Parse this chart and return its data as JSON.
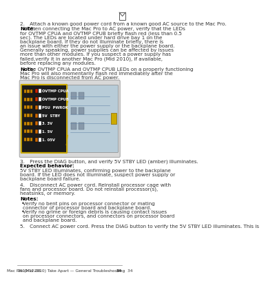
{
  "bg_color": "#f0eeeb",
  "page_bg": "#ffffff",
  "title_footer_left": "2010-12-06",
  "title_footer_right": "Mac Pro (Mid 2010) Take Apart — General Troubleshooting",
  "page_number": "34",
  "header_icon_visible": true,
  "step2_text": "2. Attach a known good power cord from a known good AC source to the Mac Pro.",
  "note1_label": "Note:",
  "note1_text": "When connecting the Mac Pro to AC power, verify that the LEDs for OVTMP CPUA and OVTMP CPUB briefly flash red (less than 0.5 sec). The LEDs are located under hard drive bay 1 on the backplane board. If they do not illuminate briefly, there is an issue with either the power supply or the backplane board. Generally speaking, power supplies can be affected by issues more than other modules. If you suspect a power supply has failed,verify it in another Mac Pro (Mid 2010), if available, before replacing any modules.",
  "note2_label": "Note:",
  "note2_text": "The OVTMP CPUA and OVTMP CPUB LEDs on a properly functioning Mac Pro will also momentarily flash red immediately after the Mac Pro is disconnected from AC power.",
  "led_labels": [
    "OVTMP CPUA",
    "OVTMP CPUB",
    "PSU  PWROK",
    "5V  STBY",
    "3. 3V",
    "1. 5V",
    "1. 05V"
  ],
  "led_colors": [
    "#cc2200",
    "#cc3300",
    "#cc6600",
    "#cc6600",
    "#cc6600",
    "#cc6600",
    "#cc6600"
  ],
  "step3_text": "3. Press the DIAG button, and verify 5V STBY LED (amber) illuminates.",
  "expected_label": "Expected behavior:",
  "expected_text": "5V STBY LED illuminates, confirming power to the backplane board. If the LED does not illuminate, suspect power supply or backplane board failure.",
  "step4_text": "4. Disconnect AC power cord. Reinstall processor cage with fans and processor board. Do not reinstall processor(s), heatsinks, or memory.",
  "notes_label": "Notes:",
  "note_bullets": [
    "Verify no bent pins on processor connector or mating connector of processor board and backplane board.",
    "Verify no grime or foreign debris is causing contact issues on processor connectors, and connectors on processor board and backplane board."
  ],
  "step5_text": "5. Connect AC power cord. Press the DIAG button to verify the 5V STBY LED illuminates. This is",
  "footer_line_color": "#888888",
  "text_color": "#333333",
  "note_bold_color": "#000000",
  "body_font_size": 5.2,
  "small_font_size": 4.5,
  "footer_font_size": 4.2
}
